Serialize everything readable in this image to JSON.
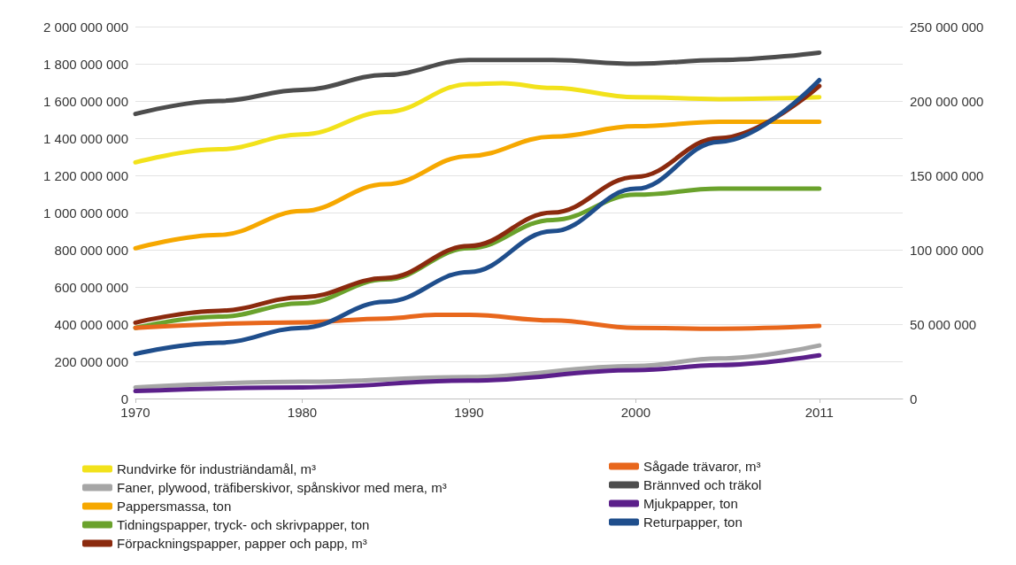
{
  "chart_data": {
    "type": "line",
    "xlim": [
      1970,
      2016
    ],
    "xticks": [
      1970,
      1980,
      1990,
      2000,
      2011
    ],
    "ylim": [
      0,
      2000000000
    ],
    "yticks": [
      {
        "value": 0,
        "label": "0"
      },
      {
        "value": 200000000,
        "label": "200 000 000"
      },
      {
        "value": 400000000,
        "label": "400 000 000"
      },
      {
        "value": 600000000,
        "label": "600 000 000"
      },
      {
        "value": 800000000,
        "label": "800 000 000"
      },
      {
        "value": 1000000000,
        "label": "1 000 000 000"
      },
      {
        "value": 1200000000,
        "label": "1 200 000 000"
      },
      {
        "value": 1400000000,
        "label": "1 400 000 000"
      },
      {
        "value": 1600000000,
        "label": "1 600 000 000"
      },
      {
        "value": 1800000000,
        "label": "1 800 000 000"
      },
      {
        "value": 2000000000,
        "label": "2 000 000 000"
      }
    ],
    "y2lim": [
      0,
      250000000
    ],
    "y2ticks": [
      {
        "value": 0,
        "label": "0"
      },
      {
        "value": 50000000,
        "label": "50 000 000"
      },
      {
        "value": 100000000,
        "label": "100 000 000"
      },
      {
        "value": 150000000,
        "label": "150 000 000"
      },
      {
        "value": 200000000,
        "label": "200 000 000"
      },
      {
        "value": 250000000,
        "label": "250 000 000"
      }
    ],
    "grid": "y",
    "legend": "bottom",
    "marker": "none",
    "line_style": "solid",
    "series": [
      {
        "name": "Rundvirke för industriändamål, m³",
        "color": "#f2e21b",
        "x": [
          1970,
          1975,
          1980,
          1985,
          1990,
          1992,
          1995,
          2000,
          2005,
          2011
        ],
        "values": [
          1270000000,
          1340000000,
          1420000000,
          1540000000,
          1690000000,
          1695000000,
          1670000000,
          1620000000,
          1610000000,
          1620000000
        ]
      },
      {
        "name": "Faner, plywood, träfiberskivor, spånskivor med mera, m³",
        "color": "#a6a6a6",
        "x": [
          1970,
          1980,
          1990,
          2000,
          2005,
          2011
        ],
        "values": [
          60000000,
          90000000,
          115000000,
          175000000,
          215000000,
          285000000
        ]
      },
      {
        "name": "Pappersmassa, ton",
        "color": "#f6a800",
        "axis": "y2",
        "x": [
          1970,
          1975,
          1980,
          1985,
          1990,
          1995,
          2000,
          2005,
          2011
        ],
        "values": [
          101000000,
          110000000,
          126000000,
          144000000,
          163000000,
          176000000,
          183000000,
          186000000,
          186000000
        ]
      },
      {
        "name": "Tidningspapper, tryck- och skrivpapper, ton",
        "color": "#6aa22c",
        "axis": "y2",
        "x": [
          1970,
          1975,
          1980,
          1985,
          1990,
          1995,
          2000,
          2005,
          2011
        ],
        "values": [
          47500000,
          55000000,
          64000000,
          80000000,
          101000000,
          120000000,
          137000000,
          141000000,
          141000000
        ]
      },
      {
        "name": "Förpackningspapper, papper och papp, m³",
        "color": "#8b2a0e",
        "axis": "y2",
        "x": [
          1970,
          1975,
          1980,
          1985,
          1990,
          1995,
          2000,
          2005,
          2011
        ],
        "values": [
          51000000,
          59000000,
          68000000,
          81000000,
          102500000,
          125000000,
          149000000,
          175000000,
          210000000
        ]
      },
      {
        "name": "Sågade trävaror, m³",
        "color": "#e8671c",
        "x": [
          1970,
          1980,
          1985,
          1988,
          1990,
          1995,
          2000,
          2005,
          2011
        ],
        "values": [
          380000000,
          410000000,
          430000000,
          450000000,
          450000000,
          420000000,
          380000000,
          375000000,
          390000000
        ]
      },
      {
        "name": "Brännved och träkol",
        "color": "#4d4d4d",
        "x": [
          1970,
          1975,
          1980,
          1985,
          1990,
          1995,
          2000,
          2005,
          2011
        ],
        "values": [
          1530000000,
          1600000000,
          1660000000,
          1740000000,
          1820000000,
          1820000000,
          1800000000,
          1820000000,
          1860000000
        ]
      },
      {
        "name": "Mjukpapper, ton",
        "color": "#5b1f8a",
        "axis": "y2",
        "x": [
          1970,
          1980,
          1990,
          2000,
          2005,
          2011
        ],
        "values": [
          5000000,
          7500000,
          12000000,
          19000000,
          22500000,
          29000000
        ]
      },
      {
        "name": "Returpapper, ton",
        "color": "#1f4e8c",
        "axis": "y2",
        "x": [
          1970,
          1975,
          1980,
          1985,
          1990,
          1995,
          2000,
          2005,
          2011
        ],
        "values": [
          30000000,
          37500000,
          47500000,
          65000000,
          85000000,
          112500000,
          141000000,
          172500000,
          214000000
        ]
      }
    ]
  }
}
